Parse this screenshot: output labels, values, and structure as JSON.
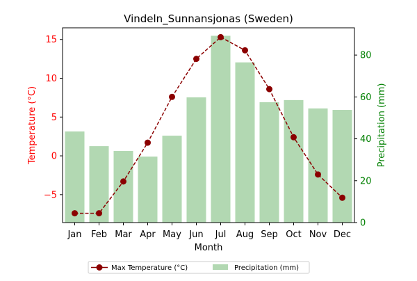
{
  "chart_data": {
    "type": "bar+line",
    "title": "Vindeln_Sunnansjonas (Sweden)",
    "xlabel": "Month",
    "categories": [
      "Jan",
      "Feb",
      "Mar",
      "Apr",
      "May",
      "Jun",
      "Jul",
      "Aug",
      "Sep",
      "Oct",
      "Nov",
      "Dec"
    ],
    "left_axis": {
      "label": "Temperature (°C)",
      "ylim": [
        -8.6,
        16.5
      ],
      "ticks": [
        -5,
        0,
        5,
        10,
        15
      ],
      "tick_labels": [
        "−5",
        "0",
        "5",
        "10",
        "15"
      ],
      "color": "#ff0000"
    },
    "right_axis": {
      "label": "Precipitation (mm)",
      "ylim": [
        0,
        93
      ],
      "ticks": [
        0,
        20,
        40,
        60,
        80
      ],
      "tick_labels": [
        "0",
        "20",
        "40",
        "60",
        "80"
      ],
      "color": "#008000"
    },
    "series": [
      {
        "name": "Max Temperature (°C)",
        "type": "line",
        "axis": "left",
        "color": "#8b0000",
        "line_style": "dashed",
        "marker": "circle",
        "values": [
          -7.4,
          -7.4,
          -3.3,
          1.7,
          7.6,
          12.5,
          15.3,
          13.6,
          8.6,
          2.4,
          -2.4,
          -5.4
        ]
      },
      {
        "name": "Precipitation (mm)",
        "type": "bar",
        "axis": "right",
        "color": "#b2d8b2",
        "values": [
          43.5,
          36.5,
          34.2,
          31.5,
          41.5,
          59.8,
          89.2,
          76.5,
          57.5,
          58.5,
          54.5,
          53.8
        ]
      }
    ],
    "legend": {
      "placement": "bottom-center",
      "entries": [
        "Max Temperature (°C)",
        "Precipitation (mm)"
      ]
    },
    "grid": false
  }
}
